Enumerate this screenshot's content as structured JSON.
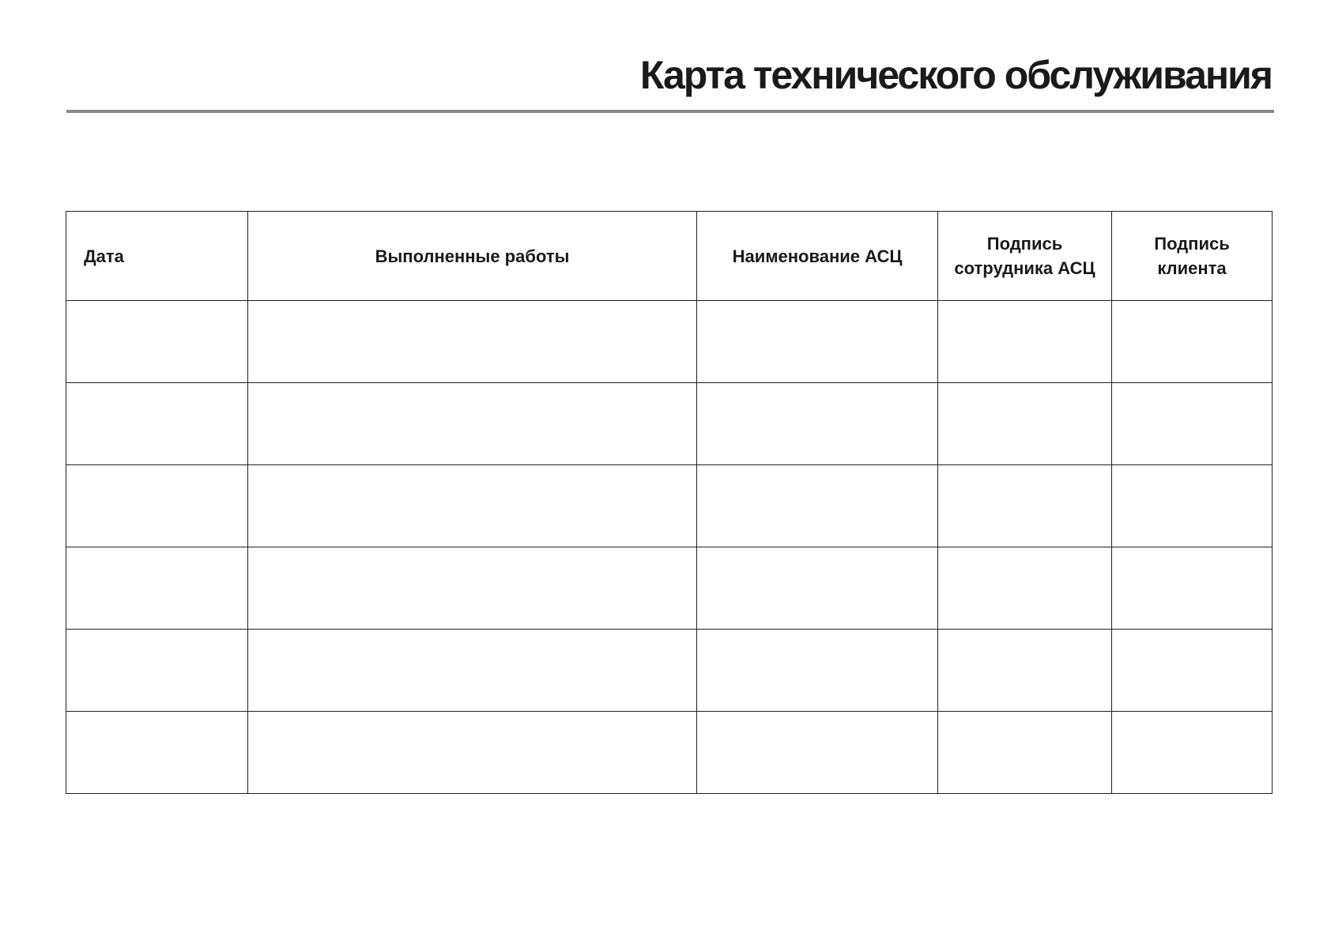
{
  "title": "Карта технического обслуживания",
  "table": {
    "headers": [
      "Дата",
      "Выполненные работы",
      "Наименование АСЦ",
      "Подпись сотрудника АСЦ",
      "Подпись клиента"
    ],
    "empty_rows": 6
  }
}
